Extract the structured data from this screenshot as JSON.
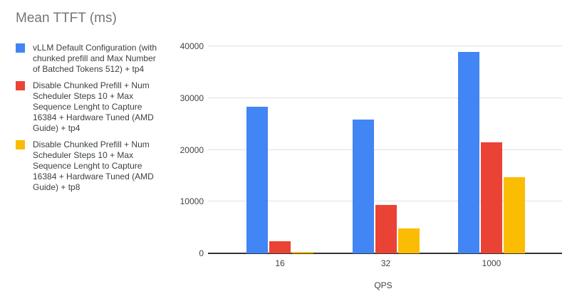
{
  "title": "Mean TTFT (ms)",
  "colors": {
    "background": "#ffffff",
    "title_text": "#757575",
    "legend_text": "#3c4043",
    "label_text": "#424242",
    "gridline": "#e0e0e0",
    "axis_line": "#333333",
    "series_blue": "#4285F4",
    "series_red": "#EA4335",
    "series_yellow": "#FBBC04"
  },
  "chart_data": {
    "type": "bar",
    "title": "Mean TTFT (ms)",
    "xlabel": "QPS",
    "ylabel": "",
    "ylim": [
      0,
      40000
    ],
    "yticks": [
      0,
      10000,
      20000,
      30000,
      40000
    ],
    "grid": true,
    "legend_position": "left",
    "categories": [
      "16",
      "32",
      "1000"
    ],
    "series": [
      {
        "name": "vLLM Default Configuration (with chunked prefill and Max Number of Batched Tokens 512) + tp4",
        "color": "#4285F4",
        "values": [
          28300,
          25900,
          38900
        ]
      },
      {
        "name": "Disable Chunked Prefill + Num Scheduler Steps 10 + Max Sequence Lenght to Capture 16384 + Hardware Tuned (AMD Guide) + tp4",
        "color": "#EA4335",
        "values": [
          2300,
          9400,
          21500
        ]
      },
      {
        "name": "Disable Chunked Prefill + Num Scheduler Steps 10 + Max Sequence Lenght to Capture 16384 + Hardware Tuned (AMD Guide) + tp8",
        "color": "#FBBC04",
        "values": [
          300,
          4800,
          14700
        ]
      }
    ]
  }
}
